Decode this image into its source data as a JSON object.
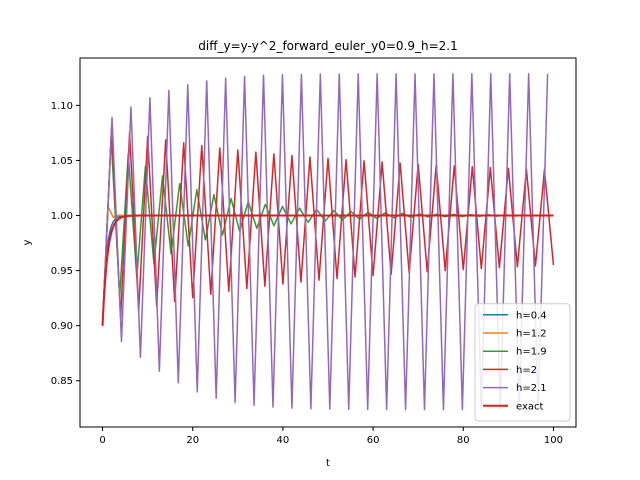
{
  "chart_data": {
    "type": "line",
    "title": "diff_y=y-y^2_forward_euler_y0=0.9_h=2.1",
    "xlabel": "t",
    "ylabel": "y",
    "xlim": [
      -5,
      105
    ],
    "ylim": [
      0.808,
      1.143
    ],
    "xticks": [
      0,
      20,
      40,
      60,
      80,
      100
    ],
    "xtick_labels": [
      "0",
      "20",
      "40",
      "60",
      "80",
      "100"
    ],
    "yticks": [
      0.85,
      0.9,
      0.95,
      1.0,
      1.05,
      1.1
    ],
    "ytick_labels": [
      "0.85",
      "0.90",
      "0.95",
      "1.00",
      "1.05",
      "1.10"
    ],
    "grid": false,
    "legend_position": "lower-right",
    "series": [
      {
        "name": "h=0.4",
        "color": "#1f77b4",
        "line_width": 1.5,
        "method": "forward_euler",
        "y0": 0.9,
        "h": 0.4,
        "t_end": 100
      },
      {
        "name": "h=1.2",
        "color": "#ff7f0e",
        "line_width": 1.5,
        "method": "forward_euler",
        "y0": 0.9,
        "h": 1.2,
        "t_end": 100
      },
      {
        "name": "h=1.9",
        "color": "#2ca02c",
        "line_width": 1.5,
        "method": "forward_euler",
        "y0": 0.9,
        "h": 1.9,
        "t_end": 100
      },
      {
        "name": "h=2",
        "color": "#d62728",
        "line_width": 1.5,
        "method": "forward_euler",
        "y0": 0.9,
        "h": 2,
        "t_end": 100
      },
      {
        "name": "h=2.1",
        "color": "#9467bd",
        "line_width": 1.5,
        "method": "forward_euler",
        "y0": 0.9,
        "h": 2.1,
        "t_end": 100
      },
      {
        "name": "exact",
        "color": "#e31a1c",
        "line_width": 2,
        "method": "exact",
        "y0": 0.9,
        "t_end": 100
      }
    ]
  }
}
